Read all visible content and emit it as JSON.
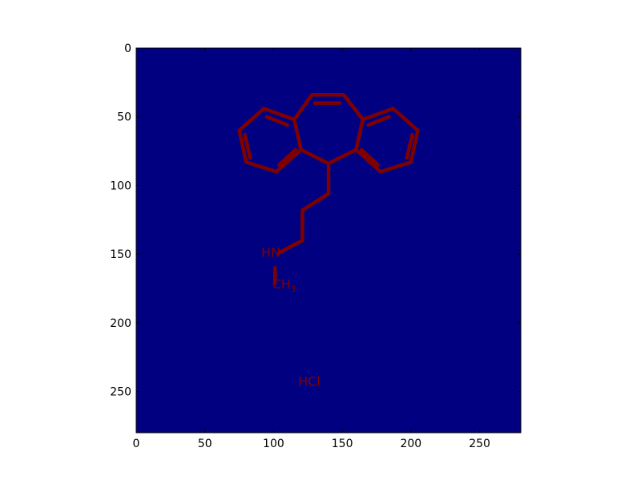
{
  "chart_data": {
    "type": "heatmap",
    "title": "",
    "xlabel": "",
    "ylabel": "",
    "xlim": [
      0,
      280
    ],
    "ylim": [
      280,
      0
    ],
    "y_axis_inverted": true,
    "grid": false,
    "x_ticks": [
      0,
      50,
      100,
      150,
      200,
      250
    ],
    "y_ticks": [
      0,
      50,
      100,
      150,
      200,
      250
    ],
    "x_tick_labels": [
      "0",
      "50",
      "100",
      "150",
      "200",
      "250"
    ],
    "y_tick_labels": [
      "0",
      "50",
      "100",
      "150",
      "200",
      "250"
    ],
    "colors": {
      "background_value_color": "#000080",
      "foreground_value_color": "#800000",
      "axes_frame": "#000000"
    },
    "depicted_image": "chemical-structure",
    "structure_labels": {
      "hn": "HN",
      "ch3_main": "CH",
      "ch3_subscript": "3",
      "hcl": "HCl"
    },
    "image_strokes": [
      [
        [
          75,
          60
        ],
        [
          93,
          44
        ]
      ],
      [
        [
          93,
          44
        ],
        [
          115,
          52
        ]
      ],
      [
        [
          115,
          52
        ],
        [
          120,
          74
        ]
      ],
      [
        [
          120,
          74
        ],
        [
          102,
          90
        ]
      ],
      [
        [
          102,
          90
        ],
        [
          80,
          83
        ]
      ],
      [
        [
          80,
          83
        ],
        [
          75,
          60
        ]
      ],
      [
        [
          79,
          63
        ],
        [
          83,
          80
        ]
      ],
      [
        [
          95,
          50
        ],
        [
          110,
          56
        ]
      ],
      [
        [
          104,
          85
        ],
        [
          116,
          74
        ]
      ],
      [
        [
          115,
          52
        ],
        [
          128,
          34
        ]
      ],
      [
        [
          128,
          34
        ],
        [
          151,
          34
        ]
      ],
      [
        [
          151,
          34
        ],
        [
          165,
          52
        ]
      ],
      [
        [
          130,
          40
        ],
        [
          148,
          40
        ]
      ],
      [
        [
          165,
          52
        ],
        [
          187,
          44
        ]
      ],
      [
        [
          187,
          44
        ],
        [
          205,
          60
        ]
      ],
      [
        [
          205,
          60
        ],
        [
          200,
          83
        ]
      ],
      [
        [
          200,
          83
        ],
        [
          178,
          90
        ]
      ],
      [
        [
          178,
          90
        ],
        [
          160,
          74
        ]
      ],
      [
        [
          160,
          74
        ],
        [
          165,
          52
        ]
      ],
      [
        [
          169,
          56
        ],
        [
          184,
          50
        ]
      ],
      [
        [
          201,
          63
        ],
        [
          197,
          80
        ]
      ],
      [
        [
          164,
          74
        ],
        [
          176,
          85
        ]
      ],
      [
        [
          120,
          74
        ],
        [
          140,
          84
        ]
      ],
      [
        [
          140,
          84
        ],
        [
          160,
          74
        ]
      ],
      [
        [
          140,
          84
        ],
        [
          140,
          106
        ]
      ],
      [
        [
          140,
          106
        ],
        [
          121,
          118
        ]
      ],
      [
        [
          121,
          118
        ],
        [
          121,
          140
        ]
      ],
      [
        [
          121,
          140
        ],
        [
          104,
          149
        ]
      ],
      [
        [
          101,
          160
        ],
        [
          101,
          171
        ]
      ]
    ]
  }
}
